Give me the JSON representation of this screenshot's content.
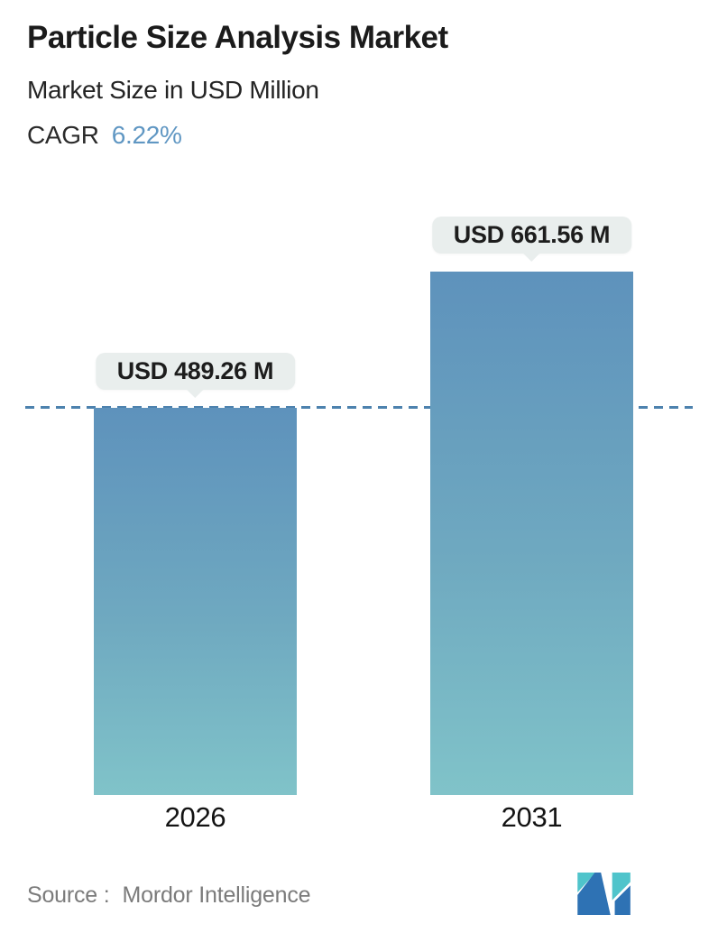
{
  "header": {
    "title": "Particle Size Analysis Market",
    "subtitle": "Market Size in USD Million",
    "cagr_label": "CAGR",
    "cagr_value": "6.22%"
  },
  "chart_data": {
    "type": "bar",
    "title": "Particle Size Analysis Market",
    "subtitle": "Market Size in USD Million",
    "unit": "USD Million",
    "cagr": "6.22%",
    "categories": [
      "2026",
      "2031"
    ],
    "values": [
      489.26,
      661.56
    ],
    "value_labels": [
      "USD 489.26 M",
      "USD 661.56 M"
    ],
    "baseline_value": 489.26,
    "baseline_style": "dashed",
    "grid": false,
    "legend": false,
    "ylim": [
      0,
      661.56
    ],
    "colors": {
      "bar_gradient_top": "#5e92bc",
      "bar_gradient_bottom": "#80c3c9",
      "dashed_line": "#4d82ae",
      "tooltip_bg": "#e9eeed",
      "cagr_accent": "#6097c3"
    }
  },
  "footer": {
    "source_label": "Source :",
    "source_value": "Mordor Intelligence",
    "logo": "mordor-intelligence-logo",
    "logo_colors": {
      "teal": "#4fc4cb",
      "blue": "#2e72b4"
    }
  }
}
